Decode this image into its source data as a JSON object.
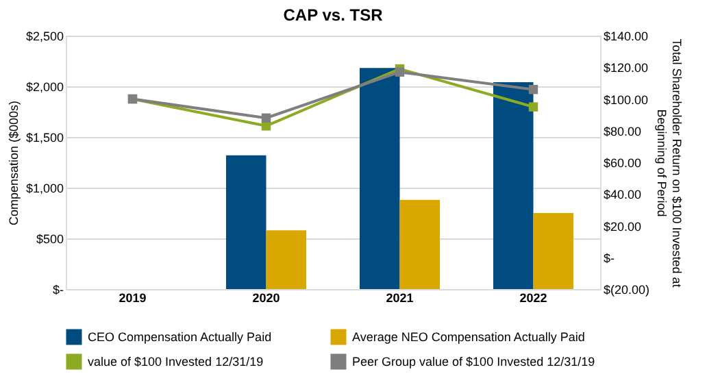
{
  "chart_data": {
    "type": "bar",
    "title": "CAP vs. TSR",
    "ylabel": "Compensation ($000s)",
    "y2label": "Total Shareholder Return on $100 Invested at\nBeginning of Period",
    "categories": [
      "2019",
      "2020",
      "2021",
      "2022"
    ],
    "series": [
      {
        "name": "CEO Compensation Actually Paid",
        "color": "#004b7f",
        "values": [
          null,
          1320,
          2180,
          2040
        ]
      },
      {
        "name": "Average NEO Compensation Actually Paid",
        "color": "#d9a800",
        "values": [
          null,
          580,
          880,
          750
        ]
      },
      {
        "name": "value of $100 Invested 12/31/19",
        "color": "#8cab22",
        "type": "line",
        "axis": "y2",
        "values": [
          100,
          83,
          119,
          95
        ]
      },
      {
        "name": "Peer Group value of $100 Invested 12/31/19",
        "color": "#7f7f7f",
        "type": "line",
        "axis": "y2",
        "values": [
          100,
          88,
          117,
          106
        ]
      }
    ],
    "ylim": [
      0,
      2500
    ],
    "yticks": [
      {
        "value": 0,
        "label": "$-"
      },
      {
        "value": 500,
        "label": "$500"
      },
      {
        "value": 1000,
        "label": "$1,000"
      },
      {
        "value": 1500,
        "label": "$1,500"
      },
      {
        "value": 2000,
        "label": "$2,000"
      },
      {
        "value": 2500,
        "label": "$2,500"
      }
    ],
    "y2lim": [
      -20,
      140
    ],
    "y2ticks": [
      {
        "value": -20,
        "label": "$(20.00)"
      },
      {
        "value": 0,
        "label": "$-"
      },
      {
        "value": 20,
        "label": "$20.00"
      },
      {
        "value": 40,
        "label": "$40.00"
      },
      {
        "value": 60,
        "label": "$60.00"
      },
      {
        "value": 80,
        "label": "$80.00"
      },
      {
        "value": 100,
        "label": "$100.00"
      },
      {
        "value": 120,
        "label": "$120.00"
      },
      {
        "value": 140,
        "label": "$140.00"
      }
    ],
    "grid": "y",
    "legend": "bottom",
    "marker": "square",
    "line_style": "solid"
  }
}
